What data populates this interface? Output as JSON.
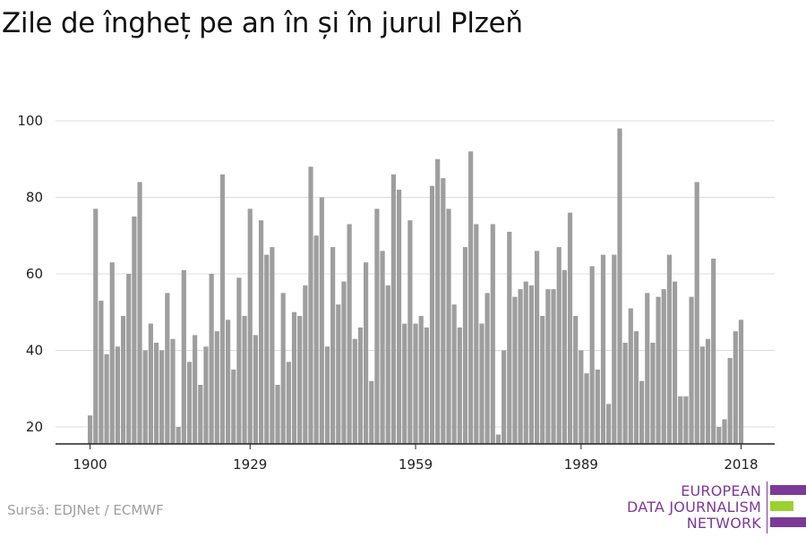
{
  "title": "Zile de îngheț pe an în și în jurul Plzeň",
  "source": "Sursă: EDJNet / ECMWF",
  "logo": {
    "line1": "EUROPEAN",
    "line2": "DATA JOURNALISM",
    "line3": "NETWORK",
    "colors": {
      "purple": "#7b3a96",
      "green": "#9ad12e"
    }
  },
  "colors": {
    "bar": "#9e9e9e",
    "grid": "#dcdcdc",
    "axis": "#222222",
    "text": "#222222"
  },
  "chart_data": {
    "type": "bar",
    "title": "Zile de îngheț pe an în și în jurul Plzeň",
    "xlabel": "",
    "ylabel": "",
    "x_start": 1900,
    "x_ticks": [
      1900,
      1929,
      1959,
      1989,
      2018
    ],
    "y_ticks": [
      20,
      40,
      60,
      80,
      100
    ],
    "ylim": [
      15,
      105
    ],
    "grid": true,
    "series": [
      {
        "values": [
          23,
          77,
          53,
          39,
          63,
          41,
          49,
          60,
          75,
          84,
          40,
          47,
          42,
          40,
          55,
          43,
          20,
          61,
          37,
          44,
          31,
          41,
          60,
          45,
          86,
          48,
          35,
          59,
          49,
          77,
          44,
          74,
          65,
          67,
          31,
          55,
          37,
          50,
          49,
          57,
          88,
          70,
          80,
          41,
          67,
          52,
          58,
          73,
          43,
          46,
          63,
          32,
          77,
          66,
          57,
          86,
          82,
          47,
          74,
          47,
          49,
          46,
          83,
          90,
          85,
          77,
          52,
          46,
          67,
          92,
          73,
          47,
          55,
          73,
          18,
          40,
          71,
          54,
          56,
          58,
          57,
          66,
          49,
          56,
          56,
          67,
          61,
          76,
          49,
          40,
          34,
          62,
          35,
          65,
          26,
          65,
          98,
          42,
          51,
          45,
          32,
          55,
          42,
          54,
          56,
          65,
          58,
          28,
          28,
          54,
          84,
          41,
          43,
          64,
          20,
          22,
          38,
          45,
          48
        ]
      }
    ]
  }
}
